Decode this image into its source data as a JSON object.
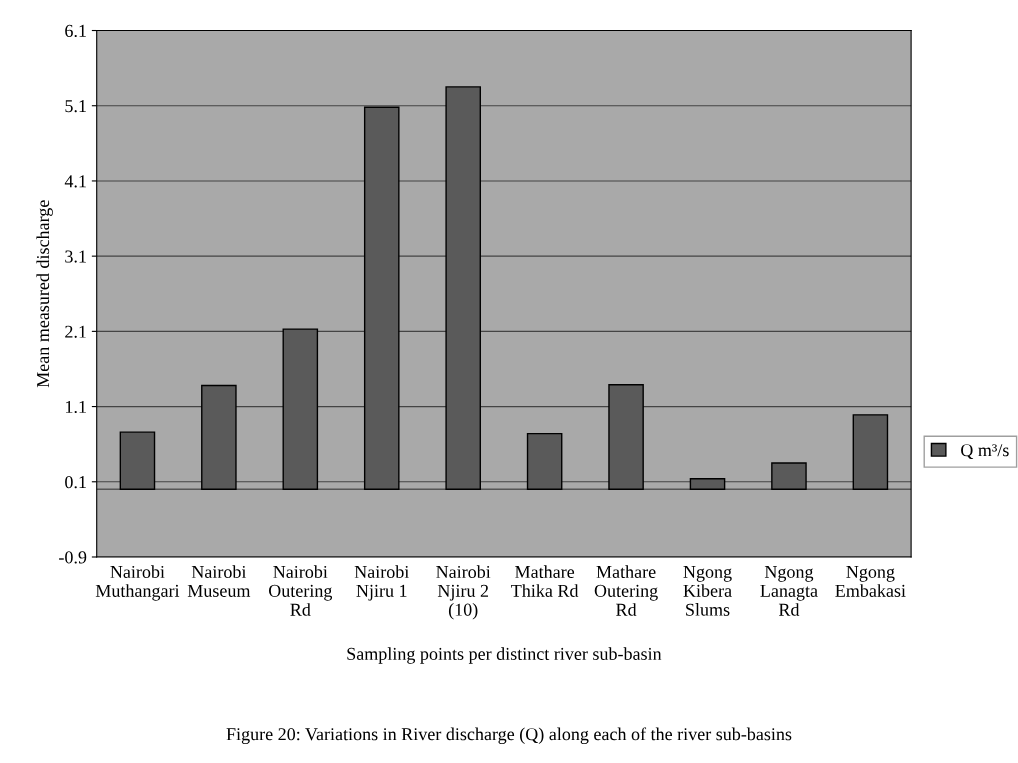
{
  "chart_data": {
    "type": "bar",
    "categories": [
      "Nairobi\nMuthangari",
      "Nairobi\nMuseum",
      "Nairobi\nOutering\nRd",
      "Nairobi\nNjiru 1",
      "Nairobi\nNjiru 2\n(10)",
      "Mathare\nThika Rd",
      "Mathare\nOutering\nRd",
      "Ngong\nKibera\nSlums",
      "Ngong\nLanagta\nRd",
      "Ngong\nEmbakasi"
    ],
    "series": [
      {
        "name": "Q m³/s",
        "color": "#5a5a5a",
        "values": [
          0.76,
          1.38,
          2.13,
          5.08,
          5.35,
          0.74,
          1.39,
          0.14,
          0.35,
          0.99
        ]
      }
    ],
    "ylabel": "Mean measured discharge",
    "xlabel": "Sampling points per distinct river sub-basin",
    "annotations": [
      "Figure 20: Variations in River discharge (Q) along each of the river sub-basins"
    ],
    "ylim": [
      -0.9,
      6.1
    ],
    "yticks": [
      -0.9,
      0.1,
      1.1,
      2.1,
      3.1,
      4.1,
      5.1,
      6.1
    ],
    "grid": "y",
    "legend": "right"
  }
}
